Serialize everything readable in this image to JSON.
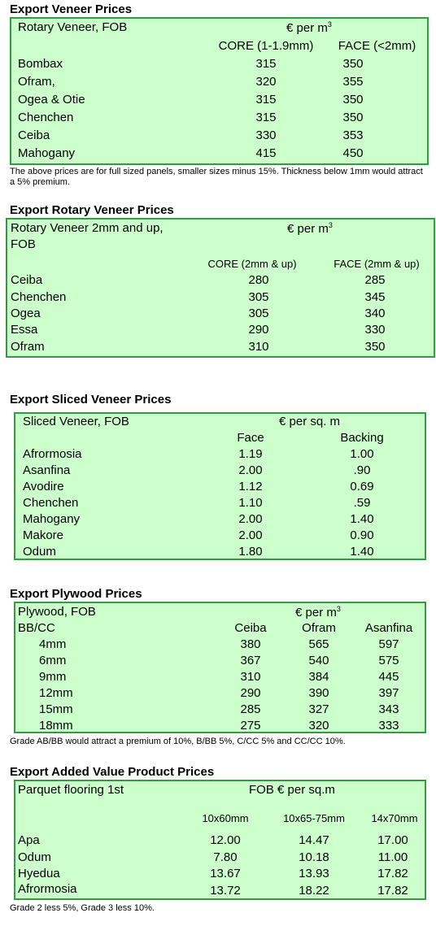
{
  "sections": [
    {
      "title": "Export Veneer Prices",
      "label_line1": "Rotary Veneer, FOB",
      "label_line2": "",
      "unit_pre": "€  per m",
      "unit_sup": "3",
      "columns": [
        "CORE (1-1.9mm)",
        "FACE (<2mm)"
      ],
      "rows": [
        {
          "name": "Bombax",
          "values": [
            "315",
            "350"
          ]
        },
        {
          "name": "Ofram,",
          "values": [
            "320",
            "355"
          ]
        },
        {
          "name": "Ogea  & Otie",
          "values": [
            "315",
            "350"
          ]
        },
        {
          "name": "Chenchen",
          "values": [
            "315",
            "350"
          ]
        },
        {
          "name": "Ceiba",
          "values": [
            "330",
            "353"
          ]
        },
        {
          "name": "Mahogany",
          "values": [
            "415",
            "450"
          ]
        }
      ],
      "note": "The above prices are for full sized panels, smaller sizes minus 15%. Thickness below 1mm would attract a 5% premium."
    },
    {
      "title": "Export Rotary Veneer Prices",
      "label_line1": "Rotary Veneer 2mm and up,",
      "label_line2": "FOB",
      "unit_pre": "€  per m",
      "unit_sup": "3",
      "columns": [
        "CORE (2mm & up)",
        "FACE (2mm & up)"
      ],
      "rows": [
        {
          "name": "Ceiba",
          "values": [
            "280",
            "285"
          ]
        },
        {
          "name": "Chenchen",
          "values": [
            "305",
            "345"
          ]
        },
        {
          "name": "Ogea",
          "values": [
            "305",
            "340"
          ]
        },
        {
          "name": "Essa",
          "values": [
            "290",
            "330"
          ]
        },
        {
          "name": "Ofram",
          "values": [
            "310",
            "350"
          ]
        }
      ],
      "note": ""
    },
    {
      "title": "Export Sliced Veneer Prices",
      "label_line1": "Sliced Veneer, FOB",
      "label_line2": "",
      "unit_pre": "€ per sq. m",
      "unit_sup": "",
      "columns": [
        "Face",
        "Backing"
      ],
      "rows": [
        {
          "name": "Afrormosia",
          "values": [
            "1.19",
            "1.00"
          ]
        },
        {
          "name": "Asanfina",
          "values": [
            "2.00",
            ".90"
          ]
        },
        {
          "name": "Avodire",
          "values": [
            "1.12",
            "0.69"
          ]
        },
        {
          "name": "Chenchen",
          "values": [
            "1.10",
            ".59"
          ]
        },
        {
          "name": "Mahogany",
          "values": [
            "2.00",
            "1.40"
          ]
        },
        {
          "name": "Makore",
          "values": [
            "2.00",
            "0.90"
          ]
        },
        {
          "name": "Odum",
          "values": [
            "1.80",
            "1.40"
          ]
        }
      ],
      "note": ""
    },
    {
      "title": "Export Plywood Prices",
      "label_line1": "Plywood, FOB",
      "label_line2": "BB/CC",
      "unit_pre": "€ per m",
      "unit_sup": "3",
      "columns": [
        "Ceiba",
        "Ofram",
        "Asanfina"
      ],
      "rows": [
        {
          "name": "4mm",
          "values": [
            "380",
            "565",
            "597"
          ]
        },
        {
          "name": "6mm",
          "values": [
            "367",
            "540",
            "575"
          ]
        },
        {
          "name": "9mm",
          "values": [
            "310",
            "384",
            "445"
          ]
        },
        {
          "name": "12mm",
          "values": [
            "290",
            "390",
            "397"
          ]
        },
        {
          "name": "15mm",
          "values": [
            "285",
            "327",
            "343"
          ]
        },
        {
          "name": "18mm",
          "values": [
            "275",
            "320",
            "333"
          ]
        }
      ],
      "note": "Grade AB/BB would attract a premium of 10%, B/BB 5%, C/CC 5% and CC/CC 10%."
    },
    {
      "title": "Export Added Value Product Prices",
      "label_line1": "Parquet flooring 1st",
      "label_line2": "",
      "unit_pre": "FOB € per sq.m",
      "unit_sup": "",
      "columns": [
        "10x60mm",
        "10x65-75mm",
        "14x70mm"
      ],
      "rows": [
        {
          "name": "Apa",
          "values": [
            "12.00",
            "14.47",
            "17.00"
          ]
        },
        {
          "name": "Odum",
          "values": [
            "7.80",
            "10.18",
            "11.00"
          ]
        },
        {
          "name": "Hyedua",
          "values": [
            "13.67",
            "13.93",
            "17.82"
          ]
        },
        {
          "name": "Afrormosia",
          "values": [
            "13.72",
            "18.22",
            "17.82"
          ]
        }
      ],
      "note": "Grade 2 less 5%, Grade 3 less 10%."
    }
  ]
}
